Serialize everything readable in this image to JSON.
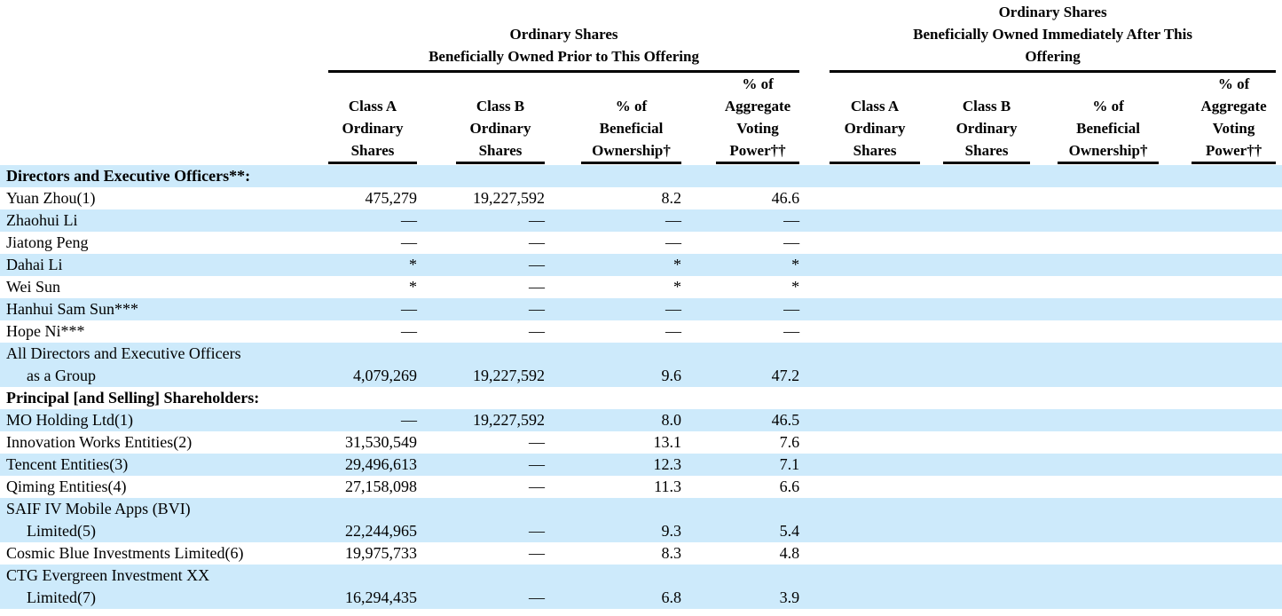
{
  "table": {
    "striped_row_color": "#cdeafb",
    "text_color": "#000000",
    "group_headers": [
      {
        "title": "Ordinary Shares\nBeneficially Owned Prior to This Offering"
      },
      {
        "title": "Ordinary Shares\nBeneficially Owned Immediately After This\nOffering"
      }
    ],
    "sub_headers": [
      "Class A\nOrdinary\nShares",
      "Class B\nOrdinary\nShares",
      "% of\nBeneficial\nOwnership†",
      "% of\nAggregate\nVoting\nPower††",
      "Class A\nOrdinary\nShares",
      "Class B\nOrdinary\nShares",
      "% of\nBeneficial\nOwnership†",
      "% of\nAggregate\nVoting\nPower††"
    ],
    "rows": [
      {
        "name": "Directors and Executive Officers**:",
        "bold": true,
        "shaded": true,
        "cells": [
          "",
          "",
          "",
          "",
          "",
          "",
          "",
          ""
        ]
      },
      {
        "name": "Yuan Zhou(1)",
        "bold": false,
        "shaded": false,
        "cells": [
          "475,279",
          "19,227,592",
          "8.2",
          "46.6",
          "",
          "",
          "",
          ""
        ]
      },
      {
        "name": "Zhaohui Li",
        "bold": false,
        "shaded": true,
        "cells": [
          "—",
          "—",
          "—",
          "—",
          "",
          "",
          "",
          ""
        ]
      },
      {
        "name": "Jiatong Peng",
        "bold": false,
        "shaded": false,
        "cells": [
          "—",
          "—",
          "—",
          "—",
          "",
          "",
          "",
          ""
        ]
      },
      {
        "name": "Dahai Li",
        "bold": false,
        "shaded": true,
        "cells": [
          "*",
          "—",
          "*",
          "*",
          "",
          "",
          "",
          ""
        ]
      },
      {
        "name": "Wei Sun",
        "bold": false,
        "shaded": false,
        "cells": [
          "*",
          "—",
          "*",
          "*",
          "",
          "",
          "",
          ""
        ]
      },
      {
        "name": "Hanhui Sam Sun***",
        "bold": false,
        "shaded": true,
        "cells": [
          "—",
          "—",
          "—",
          "—",
          "",
          "",
          "",
          ""
        ]
      },
      {
        "name": "Hope Ni***",
        "bold": false,
        "shaded": false,
        "cells": [
          "—",
          "—",
          "—",
          "—",
          "",
          "",
          "",
          ""
        ]
      },
      {
        "name": "All Directors and Executive Officers\nas a Group",
        "bold": false,
        "shaded": true,
        "cells": [
          "4,079,269",
          "19,227,592",
          "9.6",
          "47.2",
          "",
          "",
          "",
          ""
        ]
      },
      {
        "name": "Principal [and Selling] Shareholders:",
        "bold": true,
        "shaded": false,
        "cells": [
          "",
          "",
          "",
          "",
          "",
          "",
          "",
          ""
        ]
      },
      {
        "name": "MO Holding Ltd(1)",
        "bold": false,
        "shaded": true,
        "cells": [
          "—",
          "19,227,592",
          "8.0",
          "46.5",
          "",
          "",
          "",
          ""
        ]
      },
      {
        "name": "Innovation Works Entities(2)",
        "bold": false,
        "shaded": false,
        "cells": [
          "31,530,549",
          "—",
          "13.1",
          "7.6",
          "",
          "",
          "",
          ""
        ]
      },
      {
        "name": "Tencent Entities(3)",
        "bold": false,
        "shaded": true,
        "cells": [
          "29,496,613",
          "—",
          "12.3",
          "7.1",
          "",
          "",
          "",
          ""
        ]
      },
      {
        "name": "Qiming Entities(4)",
        "bold": false,
        "shaded": false,
        "cells": [
          "27,158,098",
          "—",
          "11.3",
          "6.6",
          "",
          "",
          "",
          ""
        ]
      },
      {
        "name": "SAIF IV Mobile Apps (BVI)\nLimited(5)",
        "bold": false,
        "shaded": true,
        "cells": [
          "22,244,965",
          "—",
          "9.3",
          "5.4",
          "",
          "",
          "",
          ""
        ]
      },
      {
        "name": "Cosmic Blue Investments Limited(6)",
        "bold": false,
        "shaded": false,
        "cells": [
          "19,975,733",
          "—",
          "8.3",
          "4.8",
          "",
          "",
          "",
          ""
        ]
      },
      {
        "name": "CTG Evergreen Investment XX\nLimited(7)",
        "bold": false,
        "shaded": true,
        "cells": [
          "16,294,435",
          "—",
          "6.8",
          "3.9",
          "",
          "",
          "",
          ""
        ]
      }
    ],
    "cell_names": [
      "cell-class-a-prior",
      "cell-class-b-prior",
      "cell-pct-beneficial-prior",
      "cell-pct-voting-prior",
      "cell-class-a-after",
      "cell-class-b-after",
      "cell-pct-beneficial-after",
      "cell-pct-voting-after"
    ]
  }
}
